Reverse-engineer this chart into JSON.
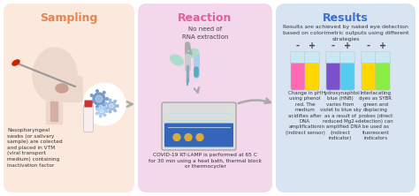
{
  "panel_sampling": {
    "title": "Sampling",
    "title_color": "#E8834E",
    "bg_color": "#FAE9DC",
    "text": "Nasopharyngeal\nswabs (or salivary\nsample) are colected\nand placed in VTM\n(viral transport\nmedium) containing\ninactivation factor"
  },
  "panel_reaction": {
    "title": "Reaction",
    "title_color": "#E060A0",
    "bg_color": "#F2D8EA",
    "text_top": "No need of\nRNA extraction",
    "text_bottom": "COVID-19 RT-LAMP is performed at 65 C\nfor 30 min using a heat bath, thermal block\nor thermocycler"
  },
  "panel_results": {
    "title": "Results",
    "title_color": "#3B6FCC",
    "bg_color": "#D8E4F2",
    "text_intro": "Results are achieved by naked eye detection\nbased on colorimetric outputs using different\nstrategies",
    "method1_label": "Change in pH\nusing phenol\nred. The\nmedium\nacidifies after\nDNA\namplification\n(indirect sensor)",
    "method2_label": "Hydroxynaphtol\nblue (HNB)\nvaries from\nviolet to blue sky\nas a result of\nreduced Mg2+\nin amplified DNA\n(indirect\nindicator)",
    "method3_label": "Interlacating\ndyes as SYBR\ngreen and\ndisplacing\nprobes (direct\ndetection) can\nbe used as\nfluorescent\nindicators",
    "tube_neg1": "#FF69B4",
    "tube_pos1": "#FFD700",
    "tube_neg2": "#7B52CC",
    "tube_pos2": "#55CCEE",
    "tube_neg3": "#FFD700",
    "tube_pos3": "#88EE44"
  },
  "arrow_color": "#AAAAAA",
  "figsize": [
    4.74,
    2.22
  ],
  "dpi": 100
}
